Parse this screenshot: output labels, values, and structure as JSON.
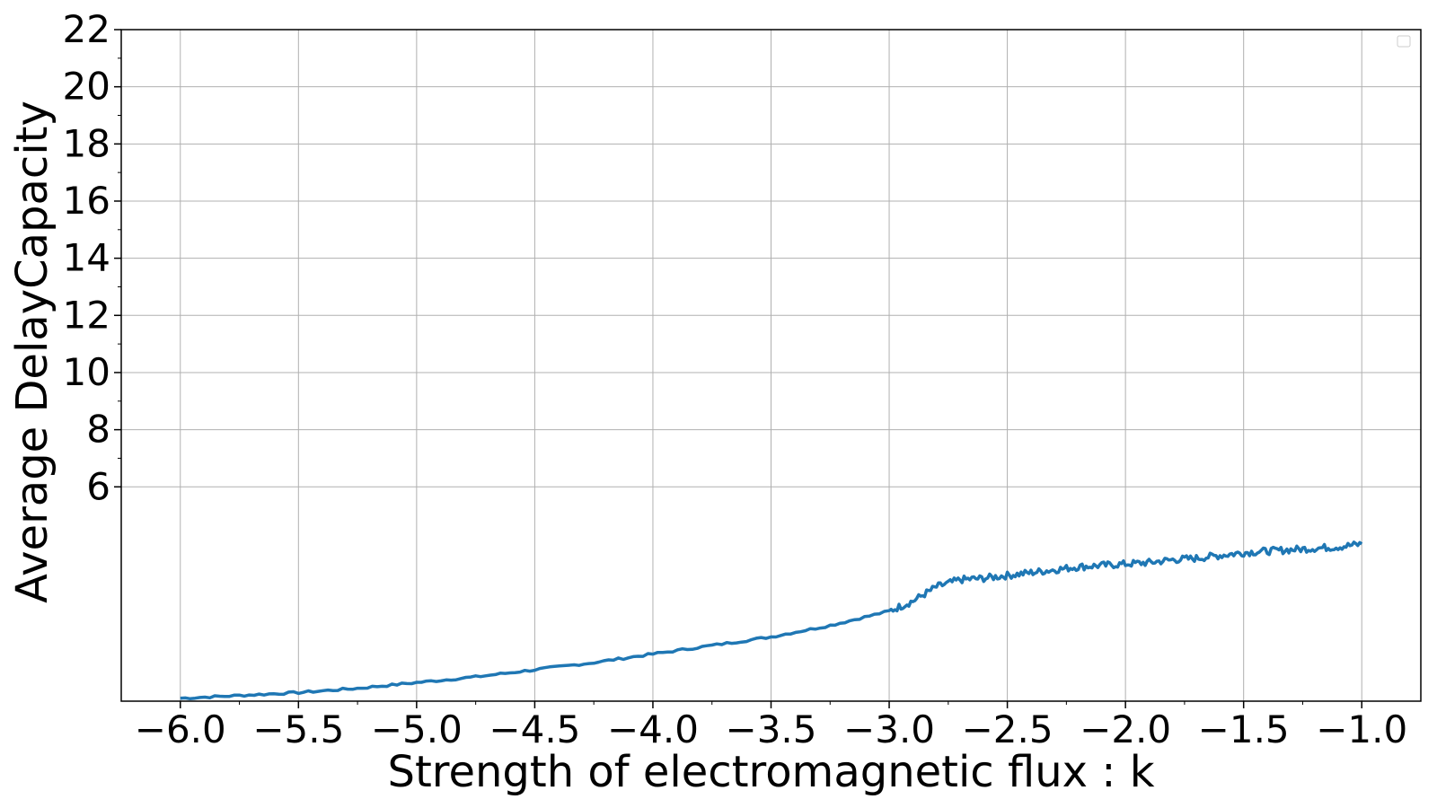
{
  "chart_data": {
    "type": "line",
    "title": "",
    "xlabel": "Strength of electromagnetic flux : k",
    "ylabel": "Average DelayCapacity",
    "xlim": [
      -6.25,
      -0.75
    ],
    "ylim": [
      -1.5,
      22
    ],
    "x_ticks": [
      -6.0,
      -5.5,
      -5.0,
      -4.5,
      -4.0,
      -3.5,
      -3.0,
      -2.5,
      -2.0,
      -1.5,
      -1.0
    ],
    "x_tick_labels": [
      "−6.0",
      "−5.5",
      "−5.0",
      "−4.5",
      "−4.0",
      "−3.5",
      "−3.0",
      "−2.5",
      "−2.0",
      "−1.5",
      "−1.0"
    ],
    "y_ticks": [
      6,
      8,
      10,
      12,
      14,
      16,
      18,
      20,
      22
    ],
    "y_tick_labels": [
      "6",
      "8",
      "10",
      "12",
      "14",
      "16",
      "18",
      "20",
      "22"
    ],
    "grid": true,
    "legend": "upper-right, empty",
    "series": [
      {
        "color": "#1f77b4",
        "x": [
          -6.0,
          -5.75,
          -5.5,
          -5.25,
          -5.0,
          -4.75,
          -4.5,
          -4.25,
          -4.0,
          -3.75,
          -3.5,
          -3.25,
          -3.0,
          -2.9,
          -2.8,
          -2.7,
          -2.6,
          -2.5,
          -2.4,
          -2.3,
          -2.2,
          -2.1,
          -2.0,
          -1.9,
          -1.8,
          -1.7,
          -1.6,
          -1.5,
          -1.4,
          -1.3,
          -1.2,
          -1.1,
          -1.0
        ],
        "y": [
          -1.4,
          -1.3,
          -1.2,
          -1.05,
          -0.85,
          -0.65,
          -0.4,
          -0.15,
          0.15,
          0.45,
          0.75,
          1.15,
          1.65,
          2.0,
          2.5,
          2.75,
          2.8,
          2.9,
          3.0,
          3.1,
          3.2,
          3.25,
          3.3,
          3.35,
          3.45,
          3.5,
          3.6,
          3.7,
          3.75,
          3.8,
          3.85,
          3.9,
          4.0
        ]
      }
    ]
  }
}
